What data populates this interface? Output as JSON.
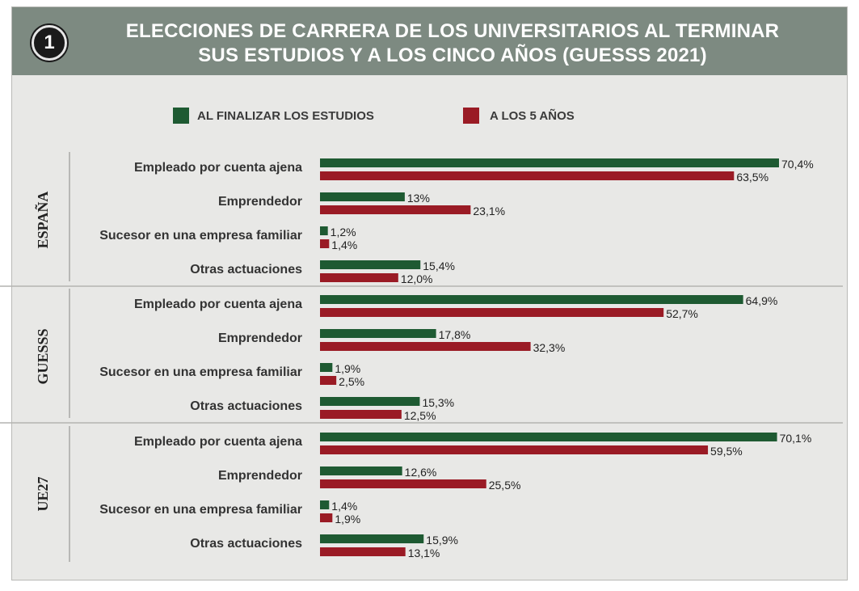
{
  "badge": "1",
  "title_lines": [
    "ELECCIONES DE CARRERA DE LOS UNIVERSITARIOS AL TERMINAR",
    "SUS ESTUDIOS Y A LOS CINCO AÑOS (GUESSS 2021)"
  ],
  "colors": {
    "header": "#7d8a81",
    "series_1": "#1e5a32",
    "series_2": "#9a1b25"
  },
  "chart_data": {
    "type": "bar",
    "orientation": "horizontal",
    "title": "ELECCIONES DE CARRERA DE LOS UNIVERSITARIOS AL TERMINAR SUS ESTUDIOS Y A LOS CINCO AÑOS (GUESSS 2021)",
    "legend": {
      "position": "top",
      "entries": [
        "AL FINALIZAR LOS ESTUDIOS",
        "A LOS 5 AÑOS"
      ]
    },
    "categories": [
      "Empleado por cuenta ajena",
      "Emprendedor",
      "Sucesor en una empresa familiar",
      "Otras actuaciones"
    ],
    "groups": [
      {
        "name": "ESPAÑA",
        "series": [
          {
            "name": "AL FINALIZAR LOS ESTUDIOS",
            "values": [
              70.4,
              13,
              1.2,
              15.4
            ],
            "labels": [
              "70,4%",
              "13%",
              "1,2%",
              "15,4%"
            ]
          },
          {
            "name": "A LOS 5 AÑOS",
            "values": [
              63.5,
              23.1,
              1.4,
              12.0
            ],
            "labels": [
              "63,5%",
              "23,1%",
              "1,4%",
              "12,0%"
            ]
          }
        ]
      },
      {
        "name": "GUESSS",
        "series": [
          {
            "name": "AL FINALIZAR LOS ESTUDIOS",
            "values": [
              64.9,
              17.8,
              1.9,
              15.3
            ],
            "labels": [
              "64,9%",
              "17,8%",
              "1,9%",
              "15,3%"
            ]
          },
          {
            "name": "A LOS 5 AÑOS",
            "values": [
              52.7,
              32.3,
              2.5,
              12.5
            ],
            "labels": [
              "52,7%",
              "32,3%",
              "2,5%",
              "12,5%"
            ]
          }
        ]
      },
      {
        "name": "UE27",
        "series": [
          {
            "name": "AL FINALIZAR LOS ESTUDIOS",
            "values": [
              70.1,
              12.6,
              1.4,
              15.9
            ],
            "labels": [
              "70,1%",
              "12,6%",
              "1,4%",
              "15,9%"
            ]
          },
          {
            "name": "A LOS 5 AÑOS",
            "values": [
              59.5,
              25.5,
              1.9,
              13.1
            ],
            "labels": [
              "59,5%",
              "25,5%",
              "1,9%",
              "13,1%"
            ]
          }
        ]
      }
    ],
    "xlim": [
      0,
      70.4
    ],
    "grid": false
  }
}
